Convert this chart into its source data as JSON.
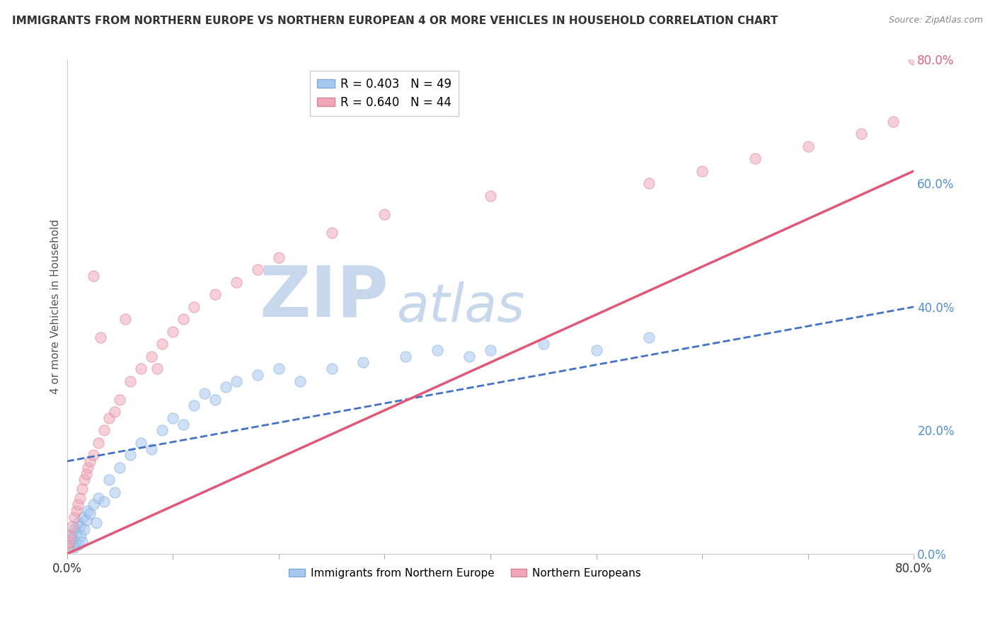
{
  "title": "IMMIGRANTS FROM NORTHERN EUROPE VS NORTHERN EUROPEAN 4 OR MORE VEHICLES IN HOUSEHOLD CORRELATION CHART",
  "source": "Source: ZipAtlas.com",
  "ylabel": "4 or more Vehicles in Household",
  "legend": [
    {
      "label": "R = 0.403   N = 49",
      "color": "#a8c8f0"
    },
    {
      "label": "R = 0.640   N = 44",
      "color": "#f0a8b8"
    }
  ],
  "blue_scatter_x": [
    0.1,
    0.2,
    0.3,
    0.4,
    0.5,
    0.6,
    0.7,
    0.8,
    0.9,
    1.0,
    1.1,
    1.2,
    1.3,
    1.4,
    1.5,
    1.6,
    1.8,
    2.0,
    2.2,
    2.5,
    2.8,
    3.0,
    3.5,
    4.0,
    4.5,
    5.0,
    6.0,
    7.0,
    8.0,
    9.0,
    10.0,
    11.0,
    12.0,
    13.0,
    14.0,
    15.0,
    16.0,
    18.0,
    20.0,
    22.0,
    25.0,
    28.0,
    32.0,
    35.0,
    38.0,
    40.0,
    45.0,
    50.0,
    55.0
  ],
  "blue_scatter_y": [
    1.0,
    2.0,
    1.5,
    3.0,
    2.5,
    1.0,
    4.0,
    2.0,
    3.5,
    5.0,
    1.5,
    4.5,
    3.0,
    2.0,
    6.0,
    4.0,
    5.5,
    7.0,
    6.5,
    8.0,
    5.0,
    9.0,
    8.5,
    12.0,
    10.0,
    14.0,
    16.0,
    18.0,
    17.0,
    20.0,
    22.0,
    21.0,
    24.0,
    26.0,
    25.0,
    27.0,
    28.0,
    29.0,
    30.0,
    28.0,
    30.0,
    31.0,
    32.0,
    33.0,
    32.0,
    33.0,
    34.0,
    33.0,
    35.0
  ],
  "pink_scatter_x": [
    0.1,
    0.2,
    0.3,
    0.5,
    0.7,
    0.9,
    1.0,
    1.2,
    1.4,
    1.6,
    1.8,
    2.0,
    2.2,
    2.5,
    3.0,
    3.5,
    4.0,
    4.5,
    5.0,
    6.0,
    7.0,
    8.0,
    9.0,
    10.0,
    11.0,
    12.0,
    14.0,
    16.0,
    18.0,
    20.0,
    25.0,
    30.0,
    40.0,
    55.0,
    60.0,
    65.0,
    70.0,
    75.0,
    78.0,
    80.0,
    2.5,
    3.2,
    5.5,
    8.5
  ],
  "pink_scatter_y": [
    1.0,
    2.0,
    3.0,
    4.5,
    6.0,
    7.0,
    8.0,
    9.0,
    10.5,
    12.0,
    13.0,
    14.0,
    15.0,
    16.0,
    18.0,
    20.0,
    22.0,
    23.0,
    25.0,
    28.0,
    30.0,
    32.0,
    34.0,
    36.0,
    38.0,
    40.0,
    42.0,
    44.0,
    46.0,
    48.0,
    52.0,
    55.0,
    58.0,
    60.0,
    62.0,
    64.0,
    66.0,
    68.0,
    70.0,
    80.0,
    45.0,
    35.0,
    38.0,
    30.0
  ],
  "blue_trend_x": [
    0,
    80
  ],
  "blue_trend_y": [
    15.0,
    40.0
  ],
  "pink_trend_x": [
    0,
    80
  ],
  "pink_trend_y": [
    0.0,
    62.0
  ],
  "right_yticks": [
    0.0,
    20.0,
    40.0,
    60.0,
    80.0
  ],
  "right_ytick_colors": [
    "#5090d0",
    "#5090d0",
    "#5090d0",
    "#5090d0",
    "#e06080"
  ],
  "xlim": [
    0,
    80
  ],
  "ylim": [
    0,
    80
  ],
  "watermark_zip_color": "#c8d8ec",
  "watermark_atlas_color": "#c8d8ec",
  "scatter_alpha": 0.55,
  "scatter_size": 120,
  "blue_color": "#a8c8f0",
  "blue_edge_color": "#7aaad8",
  "pink_color": "#f0a8b8",
  "pink_edge_color": "#d88098",
  "blue_line_color": "#4472c4",
  "pink_line_color": "#e05878",
  "grid_color": "#d8d8d8",
  "background_color": "#ffffff"
}
